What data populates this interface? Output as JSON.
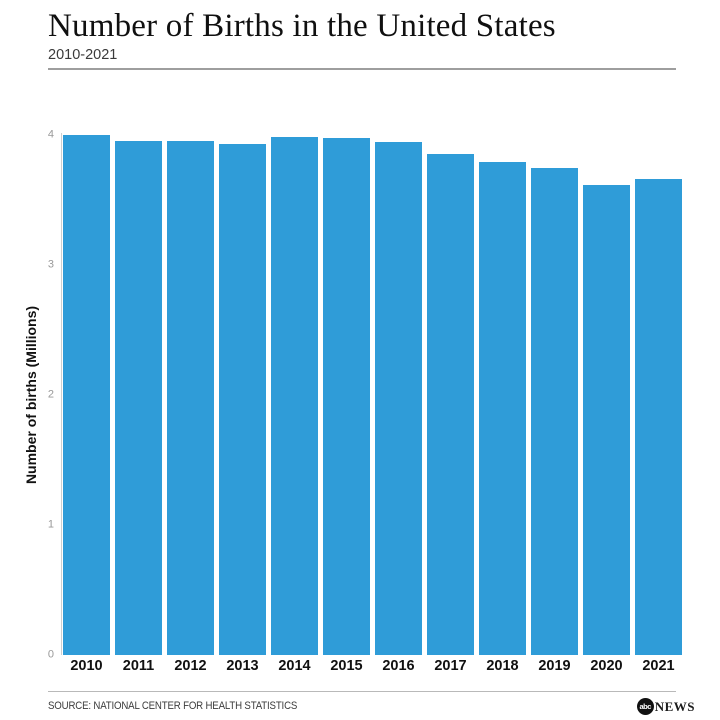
{
  "header": {
    "title": "Number of Births in the United States",
    "subtitle": "2010-2021"
  },
  "chart_data": {
    "type": "bar",
    "title": "Number of Births in the United States",
    "subtitle": "2010-2021",
    "categories": [
      "2010",
      "2011",
      "2012",
      "2013",
      "2014",
      "2015",
      "2016",
      "2017",
      "2018",
      "2019",
      "2020",
      "2021"
    ],
    "values": [
      3.999,
      3.954,
      3.953,
      3.932,
      3.988,
      3.978,
      3.946,
      3.855,
      3.792,
      3.748,
      3.614,
      3.664
    ],
    "unit": "millions",
    "xlabel": "",
    "ylabel": "Number of births (Millions)",
    "ylim": [
      0,
      4
    ],
    "yticks": [
      0,
      1,
      2,
      3,
      4
    ],
    "grid": false,
    "legend": false,
    "bar_color": "#2f9cd8"
  },
  "footer": {
    "source": "SOURCE: NATIONAL CENTER FOR HEALTH STATISTICS",
    "logo": {
      "circle_text": "abc",
      "wordmark": "NEWS"
    }
  },
  "colors": {
    "bar": "#2f9cd8",
    "title_text": "#101010",
    "subtitle_text": "#3a3a3a",
    "tick_text": "#999999",
    "rule": "#9e9e9e",
    "background": "#ffffff"
  }
}
